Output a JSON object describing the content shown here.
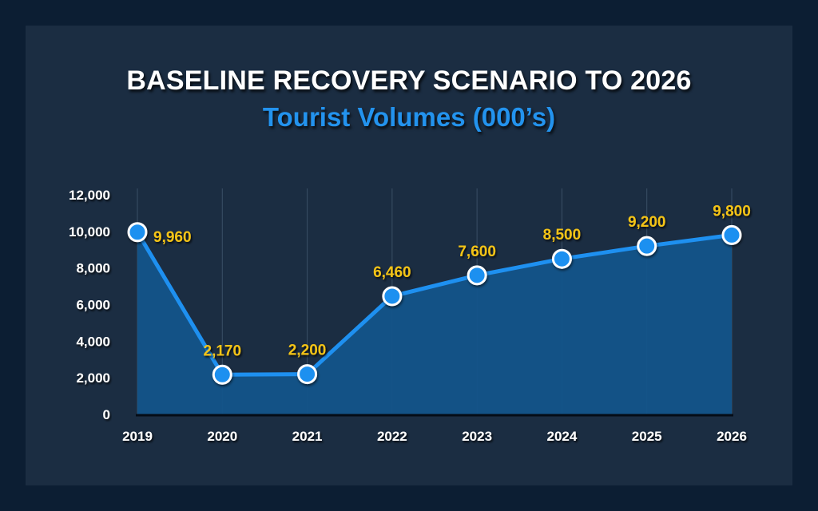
{
  "chart_data": {
    "type": "area",
    "title": "BASELINE RECOVERY SCENARIO TO 2026",
    "subtitle": "Tourist Volumes (000’s)",
    "x": [
      "2019",
      "2020",
      "2021",
      "2022",
      "2023",
      "2024",
      "2025",
      "2026"
    ],
    "values": [
      9960,
      2170,
      2200,
      6460,
      7600,
      8500,
      9200,
      9800
    ],
    "data_labels": [
      "9,960",
      "2,170",
      "2,200",
      "6,460",
      "7,600",
      "8,500",
      "9,200",
      "9,800"
    ],
    "ylim": [
      0,
      12000
    ],
    "yticks": [
      "0",
      "2,000",
      "4,000",
      "6,000",
      "8,000",
      "10,000",
      "12,000"
    ],
    "grid": "vertical",
    "colors": {
      "line": "#1e90f0",
      "area": "#13548a",
      "marker_fill": "#1e90f0",
      "marker_stroke": "#ffffff",
      "data_label": "#f3c318",
      "title": "#ffffff",
      "subtitle": "#2393ee"
    }
  }
}
